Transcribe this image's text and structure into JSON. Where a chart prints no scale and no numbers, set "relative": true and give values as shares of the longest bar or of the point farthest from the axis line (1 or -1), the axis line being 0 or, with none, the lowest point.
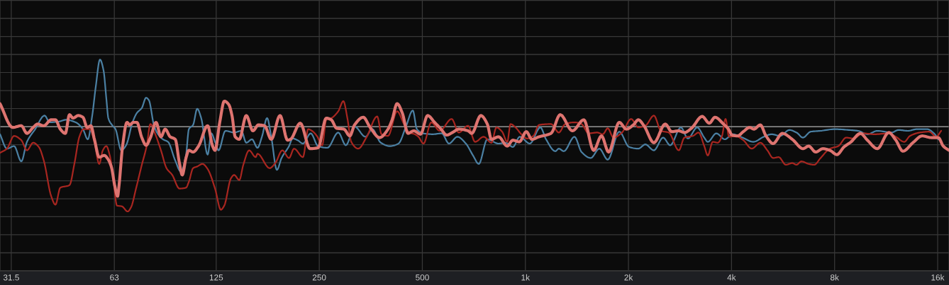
{
  "chart_data": {
    "type": "line",
    "relative": true,
    "log": "x",
    "grid": true,
    "tick_labels": "x",
    "xlim": [
      29.2,
      17270
    ],
    "xticks": [
      31.5,
      63,
      125,
      250,
      500,
      {
        "value": 1000,
        "label": "1k"
      },
      {
        "value": 2000,
        "label": "2k"
      },
      {
        "value": 4000,
        "label": "4k"
      },
      {
        "value": 8000,
        "label": "8k"
      },
      {
        "value": 16000,
        "label": "16k"
      }
    ],
    "series": [
      {
        "color": "#4b80a3",
        "x": [
          29.2,
          30.6,
          32.1,
          33.7,
          35.0,
          37.0,
          39.4,
          40.8,
          43.4,
          45.5,
          48.6,
          51.0,
          52.7,
          54.3,
          55.6,
          57.2,
          58.6,
          59.7,
          60.5,
          62.0,
          63.5,
          66.0,
          68.2,
          71.2,
          73.3,
          75.8,
          78.0,
          79.5,
          82.2,
          84.2,
          87.4,
          90.4,
          94.9,
          98.5,
          102,
          104,
          107,
          110,
          113,
          118,
          121,
          124,
          127,
          133,
          141,
          148,
          153,
          159,
          165,
          170,
          176,
          181,
          188,
          194,
          204,
          209,
          216,
          224,
          236,
          248,
          264,
          284,
          299,
          317,
          341,
          357,
          378,
          402,
          426,
          447,
          469,
          482,
          503,
          536,
          570,
          598,
          633,
          670,
          703,
          731,
          774,
          835,
          876,
          919,
          963,
          1030,
          1106,
          1149,
          1223,
          1252,
          1295,
          1391,
          1459,
          1552,
          1644,
          1740,
          1880,
          2008,
          2137,
          2241,
          2373,
          2525,
          2648,
          2845,
          2984,
          3175,
          3330,
          3410,
          3611,
          3824,
          4032,
          4309,
          4628,
          4971,
          5239,
          5548,
          5902,
          6194,
          6466,
          6811,
          7281,
          8010,
          8812,
          9376,
          9977,
          10665,
          11733,
          12306,
          13093,
          13930,
          14892,
          15619,
          16070
        ],
        "values": [
          -0.09,
          -0.26,
          -0.23,
          -0.41,
          -0.18,
          -0.03,
          0.13,
          0.05,
          0.06,
          0.08,
          0.05,
          -0.03,
          -0.15,
          0.13,
          0.47,
          0.79,
          0.66,
          0.33,
          0.1,
          0.02,
          -0.03,
          -0.28,
          -0.22,
          0.05,
          0.16,
          0.22,
          0.34,
          0.31,
          0.02,
          -0.08,
          -0.15,
          -0.18,
          -0.4,
          -0.53,
          -0.34,
          -0.03,
          0.02,
          0.21,
          0.1,
          -0.33,
          -0.08,
          -0.18,
          -0.28,
          -0.05,
          -0.07,
          -0.05,
          -0.19,
          -0.15,
          -0.25,
          -0.12,
          0.1,
          -0.12,
          -0.51,
          -0.37,
          -0.23,
          -0.14,
          -0.16,
          -0.2,
          -0.08,
          -0.23,
          -0.25,
          -0.07,
          -0.22,
          0.0,
          -0.12,
          -0.03,
          -0.19,
          -0.23,
          -0.2,
          -0.01,
          0.19,
          -0.03,
          -0.08,
          -0.09,
          -0.08,
          -0.2,
          -0.12,
          -0.2,
          -0.34,
          -0.44,
          -0.15,
          -0.2,
          -0.19,
          -0.24,
          -0.12,
          -0.2,
          -0.01,
          -0.15,
          -0.29,
          -0.26,
          -0.29,
          -0.12,
          -0.3,
          -0.37,
          -0.26,
          -0.39,
          -0.06,
          -0.24,
          -0.26,
          -0.21,
          -0.28,
          -0.13,
          -0.22,
          -0.01,
          -0.14,
          -0.01,
          -0.13,
          -0.18,
          -0.08,
          -0.15,
          -0.09,
          -0.13,
          -0.18,
          -0.12,
          -0.09,
          -0.11,
          -0.04,
          -0.07,
          -0.13,
          -0.06,
          -0.05,
          -0.03,
          -0.04,
          -0.05,
          -0.09,
          -0.05,
          -0.07,
          -0.04,
          -0.05,
          -0.03,
          -0.03,
          -0.08,
          -0.15
        ]
      },
      {
        "color": "#a82620",
        "x": [
          29.2,
          30.6,
          32.1,
          33.7,
          35.0,
          36.5,
          37.9,
          39.2,
          41.2,
          42.4,
          43.8,
          46.6,
          48.2,
          49.8,
          51.2,
          53.5,
          55.1,
          56.9,
          58.3,
          59.7,
          61.1,
          62.6,
          64.1,
          66.3,
          68.9,
          70.5,
          72.9,
          75.8,
          78.3,
          80.3,
          82.6,
          86.2,
          89.5,
          93.0,
          97.6,
          102,
          104,
          107,
          110,
          114,
          118,
          124,
          129,
          132,
          138,
          141,
          146,
          150,
          156,
          163,
          165,
          179,
          186,
          195,
          204,
          211,
          224,
          232,
          238,
          246,
          255,
          262,
          271,
          284,
          294,
          302,
          310,
          325,
          344,
          369,
          380,
          397,
          422,
          443,
          458,
          475,
          487,
          504,
          531,
          562,
          609,
          639,
          680,
          713,
          755,
          796,
          823,
          855,
          885,
          905,
          936,
          973,
          1010,
          1055,
          1096,
          1188,
          1252,
          1307,
          1391,
          1459,
          1530,
          1620,
          1683,
          1740,
          1808,
          1915,
          2037,
          2137,
          2241,
          2373,
          2489,
          2623,
          2806,
          2914,
          3085,
          3205,
          3330,
          3410,
          3526,
          3646,
          3752,
          3842,
          3935,
          4108,
          4329,
          4584,
          4855,
          5091,
          5291,
          5495,
          5764,
          6019,
          6194,
          6401,
          6719,
          6975,
          7281,
          7751,
          8203,
          8646,
          9068,
          9694,
          10463,
          11516,
          12079,
          12784,
          13281,
          14198,
          15107,
          15844,
          16384
        ],
        "values": [
          -0.31,
          -0.26,
          -0.11,
          -0.16,
          -0.28,
          -0.19,
          -0.24,
          -0.4,
          -0.82,
          -0.92,
          -0.72,
          -0.69,
          -0.43,
          -0.12,
          -0.03,
          -0.03,
          -0.18,
          -0.44,
          -0.28,
          -0.23,
          -0.34,
          -0.62,
          -0.93,
          -0.94,
          -1.0,
          -0.95,
          -0.73,
          -0.45,
          -0.23,
          0.03,
          -0.07,
          -0.28,
          -0.49,
          -0.57,
          -0.73,
          -0.72,
          -0.65,
          -0.49,
          -0.47,
          -0.44,
          -0.5,
          -0.73,
          -0.98,
          -0.93,
          -0.61,
          -0.57,
          -0.63,
          -0.45,
          -0.28,
          -0.36,
          -0.32,
          -0.49,
          -0.43,
          -0.28,
          -0.37,
          -0.26,
          -0.36,
          -0.03,
          -0.05,
          -0.11,
          -0.22,
          0.08,
          0.1,
          0.18,
          0.3,
          0.1,
          -0.18,
          -0.26,
          -0.12,
          0.12,
          -0.09,
          -0.11,
          0.18,
          0.02,
          -0.07,
          -0.09,
          -0.12,
          -0.2,
          0.05,
          -0.05,
          0.09,
          -0.07,
          0.01,
          -0.18,
          -0.12,
          -0.19,
          -0.01,
          -0.06,
          -0.18,
          0.03,
          -0.01,
          -0.09,
          -0.14,
          -0.11,
          0.02,
          0.03,
          -0.07,
          0.03,
          0.05,
          0.03,
          -0.08,
          -0.07,
          -0.09,
          -0.02,
          -0.13,
          -0.07,
          0.09,
          -0.01,
          0.01,
          0.13,
          -0.05,
          -0.07,
          -0.28,
          -0.13,
          -0.11,
          -0.07,
          -0.23,
          -0.34,
          -0.18,
          -0.19,
          -0.11,
          0.09,
          -0.12,
          -0.11,
          -0.16,
          -0.26,
          -0.19,
          -0.28,
          -0.37,
          -0.36,
          -0.45,
          -0.43,
          -0.45,
          -0.41,
          -0.44,
          -0.45,
          -0.37,
          -0.26,
          -0.23,
          -0.13,
          -0.14,
          -0.08,
          -0.09,
          -0.08,
          -0.12,
          -0.18,
          -0.11,
          -0.07,
          -0.06,
          -0.12,
          -0.05
        ]
      },
      {
        "color": "#de7470",
        "x": [
          29.2,
          31.8,
          33.7,
          35.0,
          36.5,
          37.6,
          39.2,
          41.2,
          42.4,
          43.8,
          45.3,
          46.6,
          47.7,
          49.4,
          51.0,
          52.5,
          53.8,
          55.1,
          56.9,
          58.9,
          60.3,
          61.8,
          63.2,
          64.4,
          65.0,
          66.6,
          68.6,
          69.9,
          71.6,
          73.3,
          75.8,
          78.0,
          80.3,
          83.4,
          86.2,
          88.7,
          91.7,
          94.9,
          97.6,
          99.5,
          102,
          104,
          107,
          111,
          118,
          122,
          124,
          128,
          132,
          136,
          139,
          142,
          146,
          153,
          160,
          166,
          173,
          181,
          192,
          202,
          206,
          220,
          235,
          248,
          262,
          271,
          281,
          295,
          307,
          317,
          336,
          352,
          375,
          397,
          408,
          422,
          437,
          454,
          472,
          494,
          518,
          543,
          567,
          589,
          612,
          639,
          680,
          697,
          741,
          774,
          796,
          835,
          885,
          919,
          960,
          1006,
          1045,
          1096,
          1188,
          1264,
          1372,
          1481,
          1583,
          1668,
          1750,
          1880,
          1972,
          2067,
          2137,
          2220,
          2373,
          2562,
          2675,
          2806,
          2914,
          3055,
          3284,
          3444,
          3579,
          3790,
          3919,
          4014,
          4167,
          4329,
          4519,
          4651,
          4855,
          5044,
          5291,
          5630,
          6019,
          6466,
          6719,
          7047,
          7393,
          7751,
          8126,
          8523,
          8939,
          9512,
          9977,
          10665,
          11516,
          12079,
          12670,
          13546,
          14414,
          15338,
          16070,
          16620,
          17270
        ],
        "values": [
          0.27,
          -0.01,
          0.01,
          -0.08,
          -0.01,
          0.03,
          0.01,
          0.08,
          0.08,
          -0.03,
          -0.08,
          0.14,
          0.1,
          0.13,
          0.11,
          -0.01,
          0.01,
          -0.15,
          -0.36,
          -0.34,
          -0.38,
          -0.48,
          -0.7,
          -0.82,
          -0.7,
          -0.23,
          0.05,
          0.02,
          0.05,
          0.05,
          -0.13,
          -0.22,
          -0.13,
          0.05,
          -0.12,
          -0.03,
          -0.12,
          -0.15,
          -0.43,
          -0.57,
          -0.37,
          -0.28,
          -0.3,
          -0.23,
          0.01,
          -0.23,
          -0.28,
          0.05,
          0.3,
          0.26,
          0.13,
          -0.12,
          -0.15,
          0.13,
          -0.05,
          0.02,
          0.01,
          -0.15,
          0.13,
          -0.16,
          -0.15,
          0.04,
          -0.26,
          -0.25,
          0.1,
          0.08,
          -0.02,
          -0.03,
          -0.11,
          0.02,
          0.11,
          -0.01,
          -0.13,
          -0.03,
          0.08,
          0.27,
          0.16,
          -0.08,
          -0.05,
          -0.09,
          0.13,
          0.05,
          -0.03,
          -0.1,
          -0.07,
          -0.03,
          -0.05,
          -0.08,
          0.13,
          0.03,
          -0.15,
          -0.12,
          -0.23,
          -0.16,
          -0.18,
          -0.06,
          -0.15,
          -0.12,
          -0.08,
          0.14,
          -0.05,
          0.08,
          -0.28,
          -0.11,
          -0.3,
          0.05,
          -0.03,
          0.02,
          0.08,
          0.01,
          -0.19,
          0.03,
          -0.06,
          -0.05,
          -0.07,
          -0.02,
          0.12,
          0.04,
          0.11,
          0.03,
          -0.03,
          -0.1,
          -0.11,
          -0.06,
          -0.01,
          -0.03,
          0.02,
          -0.11,
          -0.2,
          -0.08,
          -0.15,
          -0.26,
          -0.23,
          -0.3,
          -0.26,
          -0.28,
          -0.33,
          -0.24,
          -0.18,
          -0.08,
          -0.16,
          -0.26,
          -0.07,
          -0.16,
          -0.29,
          -0.19,
          -0.11,
          -0.13,
          -0.13,
          -0.23,
          -0.28
        ]
      }
    ]
  }
}
